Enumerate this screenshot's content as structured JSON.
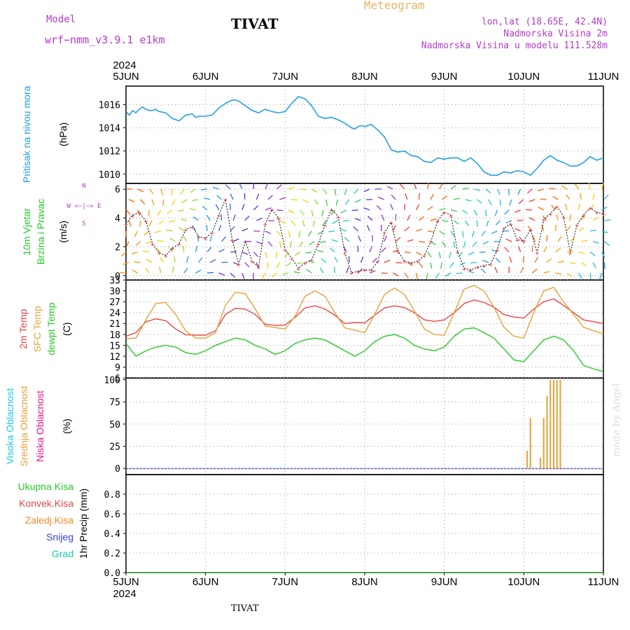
{
  "header": {
    "model_label": "Model",
    "model_name": "wrf−nmm_v3.9.1  e1km",
    "station": "TIVAT",
    "product": "Meteogram",
    "lonlat": "lon,lat (18.65E, 42.4N)",
    "altitude": "Nadmorska Visina 2m",
    "model_altitude": "Nadmorska Visina u modelu 111.528m"
  },
  "footer": {
    "station": "TIVAT",
    "credit": "made by Angel"
  },
  "colors": {
    "pressure": "#1ea0e6",
    "temp2m": "#e64646",
    "sfc": "#e6a23c",
    "dewpt": "#28c828",
    "high_cloud": "#1ec8e6",
    "mid_cloud": "#e6a23c",
    "low_cloud": "#e6148c",
    "precip_total": "#28c828",
    "precip_conv": "#e64646",
    "precip_freeze": "#f08c28",
    "snow": "#3c3ce6",
    "hail": "#14c8b4",
    "wind_legend": "#b43cc8",
    "header_model": "#b43cc8",
    "header_product": "#e6b464"
  },
  "chart_data": [
    {
      "type": "line",
      "title": "",
      "ylabel": "Pritisak na nivou mora",
      "unit": "(hPa)",
      "ylim": [
        1009.2,
        1017.6
      ],
      "yticks": [
        1010,
        1012,
        1014,
        1016
      ],
      "x_top": {
        "year": "2024",
        "labels": [
          "5JUN",
          "6JUN",
          "7JUN",
          "8JUN",
          "9JUN",
          "10JUN",
          "11JUN"
        ]
      },
      "series": [
        {
          "x_hours": [
            0,
            1,
            2,
            3,
            4,
            5,
            6,
            7,
            8,
            9,
            10,
            12,
            14,
            16,
            18,
            20,
            21,
            22,
            23,
            24,
            26,
            28,
            30,
            32,
            33,
            34,
            36,
            38,
            40,
            42,
            44,
            46,
            48,
            50,
            52,
            54,
            56,
            58,
            60,
            62,
            64,
            66,
            67,
            68,
            69,
            70,
            71,
            72,
            74,
            76,
            78,
            80,
            82,
            84,
            86,
            88,
            90,
            92,
            94,
            96,
            98,
            100,
            102,
            104,
            106,
            108,
            110,
            112,
            114,
            116,
            118,
            120,
            122,
            124,
            126,
            128,
            130,
            132,
            134,
            136,
            138,
            140,
            142,
            144
          ],
          "values": [
            1015.4,
            1015.1,
            1015.5,
            1015.3,
            1015.6,
            1015.8,
            1015.6,
            1015.5,
            1015.5,
            1015.6,
            1015.4,
            1015.3,
            1014.8,
            1014.6,
            1015.1,
            1015.2,
            1014.9,
            1015.0,
            1015.0,
            1015.0,
            1015.1,
            1015.7,
            1016.1,
            1016.4,
            1016.4,
            1016.3,
            1015.9,
            1015.5,
            1015.3,
            1015.6,
            1015.4,
            1015.3,
            1015.4,
            1016.1,
            1016.7,
            1016.5,
            1015.9,
            1015.0,
            1014.8,
            1014.9,
            1014.7,
            1014.4,
            1014.2,
            1014.0,
            1013.9,
            1014.1,
            1014.2,
            1014.1,
            1014.3,
            1013.8,
            1013.2,
            1012.1,
            1011.9,
            1012.0,
            1011.6,
            1011.5,
            1011.1,
            1011.0,
            1011.4,
            1011.3,
            1011.4,
            1011.4,
            1011.1,
            1011.4,
            1010.9,
            1010.2,
            1009.9,
            1009.9,
            1010.2,
            1010.1,
            1010.3,
            1010.2,
            1009.9,
            1010.5,
            1011.2,
            1011.6,
            1011.2,
            1011.0,
            1010.7,
            1010.7,
            1011.0,
            1011.5,
            1011.2,
            1011.4
          ]
        }
      ]
    },
    {
      "type": "line",
      "title": "",
      "ylabel": "10m Vjetar Brzina i Pravac",
      "unit": "(m/s)",
      "ylim": [
        -0.3,
        6.4
      ],
      "yticks": [
        0,
        2,
        4,
        6
      ],
      "legend": {
        "n": "N",
        "s": "S",
        "e": "E",
        "w": "W"
      },
      "series": [
        {
          "name": "speed",
          "x_hours": [
            0,
            2,
            4,
            6,
            8,
            10,
            12,
            14,
            16,
            18,
            20,
            22,
            24,
            26,
            28,
            30,
            32,
            34,
            36,
            38,
            40,
            42,
            44,
            46,
            48,
            50,
            52,
            54,
            56,
            58,
            60,
            62,
            64,
            66,
            68,
            70,
            72,
            74,
            76,
            78,
            80,
            82,
            84,
            86,
            88,
            90,
            92,
            94,
            96,
            98,
            100,
            102,
            104,
            106,
            108,
            110,
            112,
            114,
            116,
            118,
            120,
            122,
            124,
            126,
            128,
            130,
            132,
            134,
            136,
            138,
            140,
            142,
            144
          ],
          "values": [
            3.6,
            4.2,
            4.4,
            3.8,
            2.2,
            1.6,
            1.4,
            1.9,
            2.2,
            3.2,
            3.4,
            2.7,
            2.6,
            3.0,
            4.2,
            5.3,
            2.5,
            0.8,
            2.4,
            1.0,
            0.6,
            3.6,
            4.6,
            4.0,
            1.8,
            1.2,
            0.5,
            0.9,
            1.1,
            2.2,
            3.5,
            4.6,
            4.1,
            1.6,
            0.2,
            0.3,
            0.4,
            0.4,
            1.0,
            3.0,
            3.7,
            1.7,
            1.0,
            0.9,
            1.0,
            1.4,
            2.4,
            3.8,
            4.4,
            4.2,
            1.7,
            0.5,
            0.4,
            0.6,
            0.7,
            0.8,
            1.8,
            3.3,
            3.6,
            2.5,
            2.4,
            3.2,
            1.6,
            3.9,
            4.3,
            4.8,
            4.1,
            1.6,
            3.5,
            4.2,
            4.7,
            4.4,
            4.3
          ]
        }
      ]
    },
    {
      "type": "line",
      "title": "",
      "ylabels": [
        "2m Temp",
        "SFC Temp",
        "dewpt Temp"
      ],
      "unit": "(C)",
      "ylim": [
        6,
        33
      ],
      "yticks": [
        6,
        9,
        12,
        15,
        18,
        21,
        24,
        27,
        30,
        33
      ],
      "series": [
        {
          "name": "2m Temp",
          "x_hours": [
            0,
            3,
            6,
            9,
            12,
            15,
            18,
            21,
            24,
            27,
            30,
            33,
            36,
            39,
            42,
            45,
            48,
            51,
            54,
            57,
            60,
            63,
            66,
            69,
            72,
            75,
            78,
            81,
            84,
            87,
            90,
            93,
            96,
            99,
            102,
            105,
            108,
            111,
            114,
            117,
            120,
            123,
            126,
            129,
            132,
            135,
            138,
            141,
            144
          ],
          "values": [
            17.5,
            18.5,
            21.5,
            22.3,
            21.8,
            19.5,
            17.9,
            17.8,
            17.8,
            19.0,
            23.5,
            25.2,
            25.0,
            23.5,
            20.8,
            20.5,
            20.6,
            22.7,
            25.3,
            25.9,
            25.0,
            23.3,
            21.0,
            21.3,
            21.2,
            23.3,
            25.3,
            25.9,
            25.4,
            24.0,
            22.0,
            21.6,
            22.0,
            24.0,
            26.5,
            27.5,
            26.8,
            25.5,
            23.5,
            22.8,
            22.5,
            25.0,
            27.0,
            27.8,
            26.0,
            24.0,
            22.0,
            21.5,
            21.0
          ]
        },
        {
          "name": "SFC Temp",
          "x_hours": [
            0,
            3,
            6,
            9,
            12,
            15,
            18,
            21,
            24,
            27,
            30,
            33,
            36,
            39,
            42,
            45,
            48,
            51,
            54,
            57,
            60,
            63,
            66,
            69,
            72,
            75,
            78,
            81,
            84,
            87,
            90,
            93,
            96,
            99,
            102,
            105,
            108,
            111,
            114,
            117,
            120,
            123,
            126,
            129,
            132,
            135,
            138,
            141,
            144
          ],
          "values": [
            16.8,
            17.0,
            22.0,
            26.5,
            26.8,
            23.5,
            19.0,
            17.0,
            17.0,
            18.5,
            26.0,
            29.6,
            29.2,
            25.0,
            20.3,
            19.9,
            19.5,
            23.0,
            28.5,
            30.0,
            28.5,
            24.0,
            19.8,
            19.2,
            18.5,
            23.5,
            29.0,
            30.8,
            29.0,
            24.5,
            19.5,
            18.0,
            17.8,
            24.0,
            30.5,
            31.5,
            30.0,
            25.5,
            20.0,
            17.5,
            17.0,
            24.0,
            30.0,
            31.0,
            27.0,
            23.5,
            20.0,
            19.0,
            18.2
          ]
        },
        {
          "name": "dewpt Temp",
          "x_hours": [
            0,
            3,
            6,
            9,
            12,
            15,
            18,
            21,
            24,
            27,
            30,
            33,
            36,
            39,
            42,
            45,
            48,
            51,
            54,
            57,
            60,
            63,
            66,
            69,
            72,
            75,
            78,
            81,
            84,
            87,
            90,
            93,
            96,
            99,
            102,
            105,
            108,
            111,
            114,
            117,
            120,
            123,
            126,
            129,
            132,
            135,
            138,
            141,
            144
          ],
          "values": [
            15.5,
            12.0,
            13.5,
            14.5,
            15.0,
            14.5,
            13.0,
            12.5,
            13.5,
            15.0,
            16.0,
            17.0,
            16.5,
            15.0,
            14.0,
            12.5,
            13.5,
            15.5,
            16.5,
            17.0,
            16.5,
            15.0,
            13.5,
            12.0,
            13.5,
            16.0,
            17.5,
            18.0,
            17.0,
            15.0,
            14.0,
            13.5,
            14.5,
            17.5,
            19.5,
            19.8,
            18.5,
            17.0,
            14.0,
            11.0,
            10.5,
            13.5,
            16.5,
            17.5,
            16.5,
            13.5,
            9.5,
            8.5,
            7.8
          ]
        }
      ]
    },
    {
      "type": "bar",
      "title": "",
      "ylabels": [
        "Visoka Oblacnost",
        "Srednja Oblacnost",
        "Niska Oblacnost"
      ],
      "unit": "(%)",
      "ylim": [
        -7,
        102
      ],
      "yticks": [
        0,
        25,
        50,
        75,
        100
      ],
      "series": [
        {
          "name": "Srednja Oblacnost",
          "x_hours": [
            121,
            122,
            125,
            126,
            127,
            128,
            129,
            130,
            131
          ],
          "values": [
            20,
            57,
            12,
            57,
            82,
            100,
            100,
            100,
            100
          ]
        }
      ]
    },
    {
      "type": "line",
      "title": "",
      "legend": [
        "Ukupna Kisa",
        "Konvek.Kisa",
        "Zaledj.Kisa",
        "Snijeg",
        "Grad"
      ],
      "ylabel": "1hr Precip",
      "unit": "(mm)",
      "ylim": [
        0,
        1
      ],
      "yticks": [
        0,
        0.2,
        0.4,
        0.6,
        0.8
      ],
      "x_bottom": {
        "year": "2024",
        "labels": [
          "5JUN",
          "6JUN",
          "7JUN",
          "8JUN",
          "9JUN",
          "10JUN",
          "11JUN"
        ]
      },
      "series": [
        {
          "name": "Ukupna Kisa",
          "values": [
            0
          ]
        }
      ]
    }
  ]
}
